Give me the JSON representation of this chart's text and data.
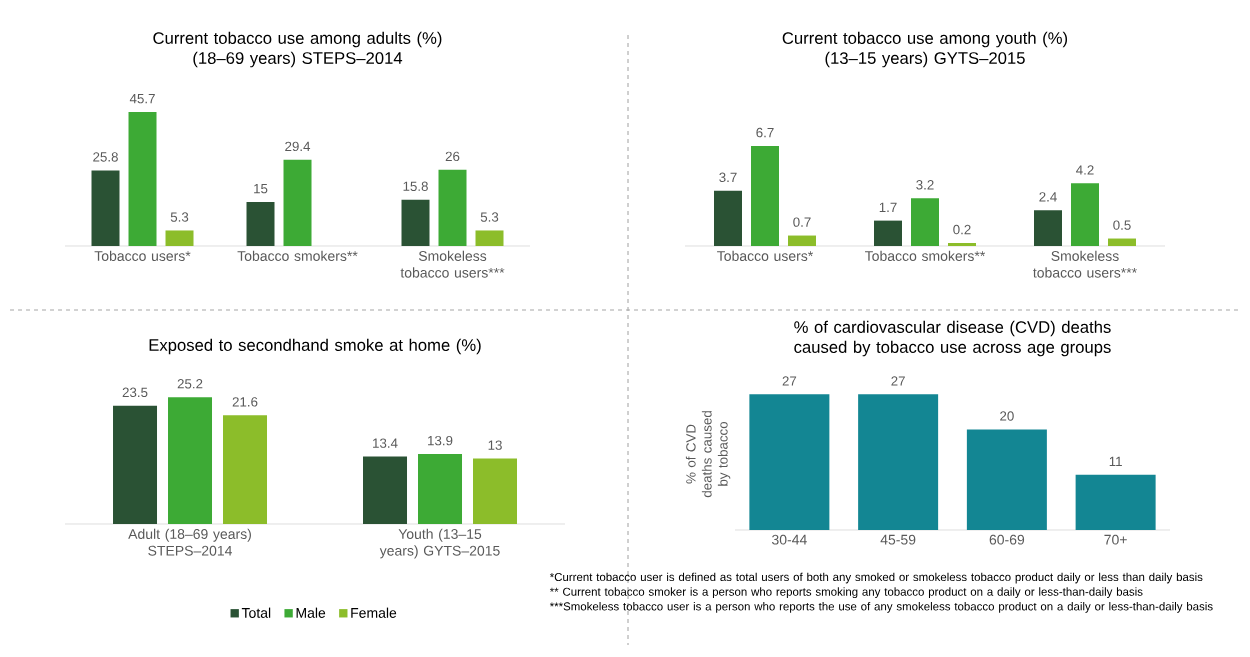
{
  "chart_data": [
    {
      "type": "bar",
      "title": "Current tobacco use among adults (%)",
      "subtitle": "(18–69 years) STEPS–2014",
      "categories": [
        "Tobacco users*",
        "Tobacco smokers**",
        "Smokeless tobacco users***"
      ],
      "data_labels": true,
      "series": [
        {
          "color": "#2a5234",
          "values": [
            25.8,
            15,
            15.8
          ]
        },
        {
          "color": "#3daa35",
          "values": [
            45.7,
            29.4,
            26
          ]
        },
        {
          "color": "#8cbd2a",
          "values": [
            5.3,
            null,
            5.3
          ]
        }
      ]
    },
    {
      "type": "bar",
      "title": "Current tobacco use among youth (%)",
      "subtitle": "(13–15 years) GYTS–2015",
      "categories": [
        "Tobacco users*",
        "Tobacco smokers**",
        "Smokeless tobacco users***"
      ],
      "data_labels": true,
      "series": [
        {
          "color": "#2a5234",
          "values": [
            3.7,
            1.7,
            2.4
          ]
        },
        {
          "color": "#3daa35",
          "values": [
            6.7,
            3.2,
            4.2
          ]
        },
        {
          "color": "#8cbd2a",
          "values": [
            0.7,
            0.2,
            0.5
          ]
        }
      ]
    },
    {
      "type": "bar",
      "title": "Exposed to secondhand smoke at home (%)",
      "categories": [
        "Adult (18–69 years) STEPS–2014",
        "Youth (13–15 years) GYTS–2015"
      ],
      "data_labels": true,
      "legend": "bottom",
      "series": [
        {
          "name": "Total",
          "color": "#2a5234",
          "values": [
            23.5,
            13.4
          ]
        },
        {
          "name": "Male",
          "color": "#3daa35",
          "values": [
            25.2,
            13.9
          ]
        },
        {
          "name": "Female",
          "color": "#8cbd2a",
          "values": [
            21.6,
            13
          ]
        }
      ]
    },
    {
      "type": "bar",
      "title": "% of cardiovascular disease (CVD) deaths caused by tobacco use across age groups",
      "ylabel": "% of CVD deaths caused by tobacco",
      "categories": [
        "30-44",
        "45-59",
        "60-69",
        "70+"
      ],
      "data_labels": true,
      "series": [
        {
          "color": "#138693",
          "values": [
            27,
            27,
            20,
            11
          ]
        }
      ],
      "annotations": [
        "*Current tobacco user is defined as total users of both any smoked or smokeless tobacco product daily or less than daily basis",
        "** Current tobacco smoker is a person who reports smoking any tobacco product on a daily or less-than-daily basis",
        "***Smokeless tobacco user is a person who reports the use of any smokeless tobacco product on a daily or less-than-daily basis"
      ]
    }
  ]
}
